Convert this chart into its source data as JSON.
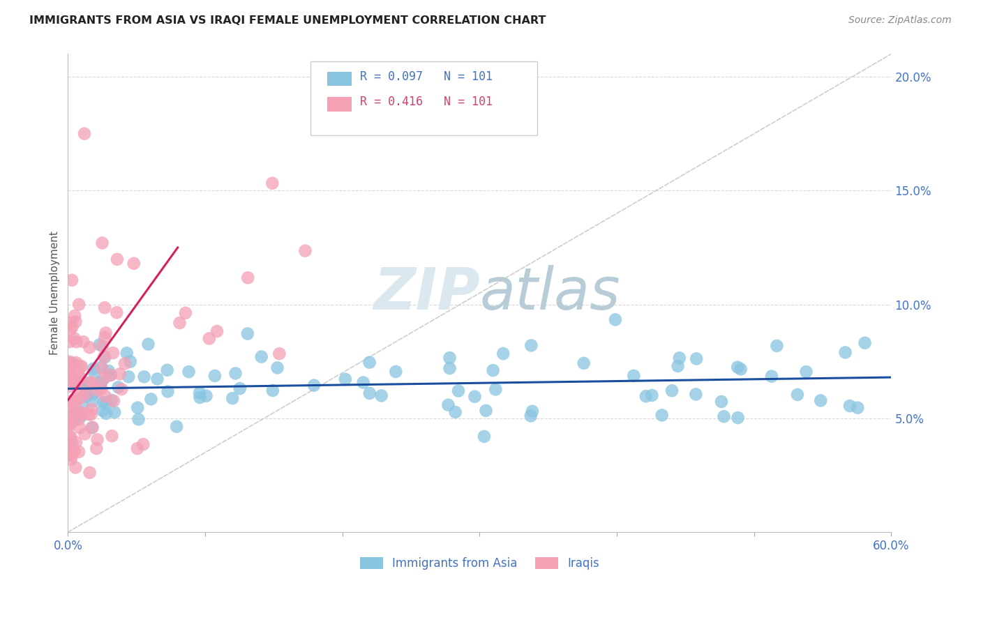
{
  "title": "IMMIGRANTS FROM ASIA VS IRAQI FEMALE UNEMPLOYMENT CORRELATION CHART",
  "source": "Source: ZipAtlas.com",
  "xlabel_label": "Immigrants from Asia",
  "ylabel_label": "Female Unemployment",
  "x_min": 0.0,
  "x_max": 0.6,
  "y_min": 0.0,
  "y_max": 0.21,
  "x_ticks": [
    0.0,
    0.1,
    0.2,
    0.3,
    0.4,
    0.5,
    0.6
  ],
  "y_ticks": [
    0.05,
    0.1,
    0.15,
    0.2
  ],
  "x_tick_labels": [
    "0.0%",
    "",
    "",
    "",
    "",
    "",
    "60.0%"
  ],
  "y_tick_labels_right": [
    "5.0%",
    "10.0%",
    "15.0%",
    "20.0%"
  ],
  "blue_color": "#89c4e1",
  "blue_line_color": "#1a4fa0",
  "pink_color": "#f4a0b5",
  "pink_line_color": "#d42060",
  "diag_line_color": "#c8c8c8",
  "grid_color": "#d8d8d8",
  "axis_text_color": "#4472c4",
  "title_color": "#222222",
  "watermark_color": "#dce8f0",
  "legend_R_blue": "0.097",
  "legend_N_blue": "101",
  "legend_R_pink": "0.416",
  "legend_N_pink": "101"
}
